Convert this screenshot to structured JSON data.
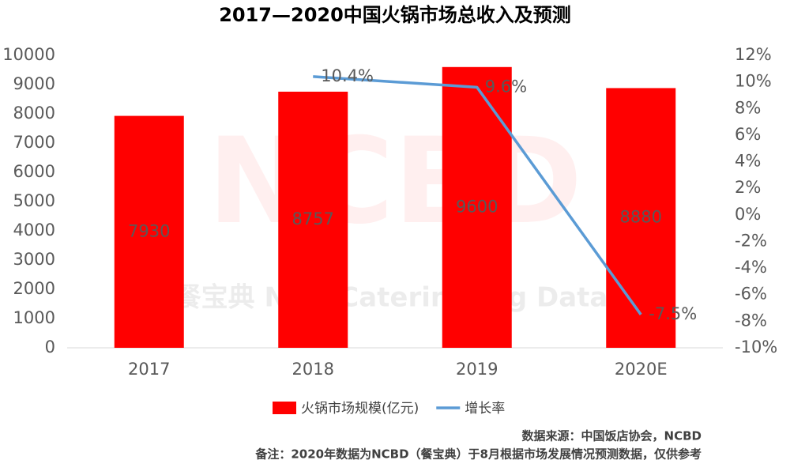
{
  "chart_data": {
    "type": "bar-line",
    "title": "2017—2020中国火锅市场总收入及预测",
    "watermark": [
      "NCBD",
      "餐宝典 New Catering Big Data"
    ],
    "categories": [
      "2017",
      "2018",
      "2019",
      "2020E"
    ],
    "series": [
      {
        "name": "火锅市场规模(亿元)",
        "type": "bar",
        "color": "#ff0000",
        "values": [
          7930,
          8757,
          9600,
          8880
        ]
      },
      {
        "name": "增长率",
        "type": "line",
        "axis": "y2",
        "color": "#5b9bd5",
        "values": [
          null,
          10.4,
          9.6,
          -7.5
        ],
        "value_labels": [
          null,
          "10.4%",
          "9.6%",
          "-7.5%"
        ]
      }
    ],
    "ylim": [
      0,
      10000
    ],
    "yticks": [
      0,
      1000,
      2000,
      3000,
      4000,
      5000,
      6000,
      7000,
      8000,
      9000,
      10000
    ],
    "y2lim": [
      -10,
      12
    ],
    "y2ticks": [
      {
        "value": -10,
        "label": "-10%"
      },
      {
        "value": -8,
        "label": "-8%"
      },
      {
        "value": -6,
        "label": "-6%"
      },
      {
        "value": -4,
        "label": "-4%"
      },
      {
        "value": -2,
        "label": "-2%"
      },
      {
        "value": 0,
        "label": "0%"
      },
      {
        "value": 2,
        "label": "2%"
      },
      {
        "value": 4,
        "label": "4%"
      },
      {
        "value": 6,
        "label": "6%"
      },
      {
        "value": 8,
        "label": "8%"
      },
      {
        "value": 10,
        "label": "10%"
      },
      {
        "value": 12,
        "label": "12%"
      }
    ],
    "legend": "bottom",
    "notes": [
      "数据来源：中国饭店协会，NCBD",
      "备注：2020年数据为NCBD（餐宝典）于8月根据市场发展情况预测数据，仅供参考"
    ]
  }
}
